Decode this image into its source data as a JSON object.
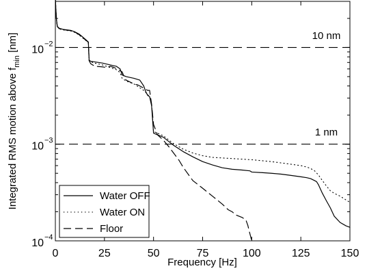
{
  "chart_data": {
    "type": "line",
    "xlabel": "Frequency [Hz]",
    "ylabel": "Integrated RMS motion above f",
    "ylabel_sub": "min",
    "ylabel_unit": " [nm]",
    "xlim": [
      0,
      150
    ],
    "ylim": [
      0.0001,
      0.03
    ],
    "yscale": "log",
    "xticks": [
      0,
      25,
      50,
      75,
      100,
      125,
      150
    ],
    "yticks": [
      {
        "value": 0.01,
        "base": "10",
        "exp": "−2"
      },
      {
        "value": 0.001,
        "base": "10",
        "exp": "−3"
      },
      {
        "value": 0.0001,
        "base": "10",
        "exp": "−4"
      }
    ],
    "grid": false,
    "legend_position": "bottom-left",
    "annotations": [
      {
        "text": "10 nm",
        "x": 138,
        "y": 0.0115
      },
      {
        "text": "1 nm",
        "x": 138,
        "y": 0.00115
      }
    ],
    "reference_lines": [
      {
        "y": 0.01,
        "style": "dashed"
      },
      {
        "y": 0.001,
        "style": "dashed"
      }
    ],
    "series": [
      {
        "name": "Water OFF",
        "style": "solid",
        "x": [
          0,
          0.5,
          1,
          2,
          4,
          6,
          8,
          10,
          12,
          14,
          16,
          16.8,
          17.2,
          18,
          20,
          24,
          28,
          31,
          33,
          34,
          36,
          40,
          43,
          45,
          46,
          47,
          48,
          49,
          49.5,
          50,
          52,
          55,
          60,
          65,
          70,
          75,
          80,
          85,
          90,
          95,
          99,
          100,
          105,
          110,
          115,
          120,
          125,
          128,
          130,
          132,
          133,
          134,
          136,
          138,
          140,
          142,
          145,
          148,
          150
        ],
        "y": [
          0.032,
          0.02,
          0.0165,
          0.0158,
          0.0154,
          0.0152,
          0.015,
          0.0145,
          0.0138,
          0.0128,
          0.0118,
          0.0114,
          0.0074,
          0.0072,
          0.0071,
          0.0069,
          0.0066,
          0.0064,
          0.006,
          0.0052,
          0.005,
          0.0048,
          0.0046,
          0.004,
          0.0035,
          0.0032,
          0.0031,
          0.0025,
          0.0018,
          0.0013,
          0.00125,
          0.00118,
          0.00098,
          0.00084,
          0.00074,
          0.00066,
          0.00061,
          0.00057,
          0.00055,
          0.00054,
          0.00053,
          0.000515,
          0.000508,
          0.0005,
          0.00049,
          0.000475,
          0.00046,
          0.00045,
          0.00044,
          0.00042,
          0.00041,
          0.00038,
          0.00031,
          0.00026,
          0.00022,
          0.00018,
          0.000155,
          0.000143,
          0.000138
        ]
      },
      {
        "name": "Water ON",
        "style": "dotted",
        "x": [
          0,
          0.5,
          1,
          2,
          4,
          6,
          8,
          10,
          12,
          14,
          16,
          16.8,
          17.2,
          18,
          20,
          24,
          28,
          31,
          33,
          34,
          36,
          40,
          45,
          48,
          49,
          49.5,
          50,
          52,
          55,
          60,
          65,
          70,
          75,
          80,
          85,
          90,
          95,
          100,
          105,
          110,
          115,
          120,
          125,
          128,
          130,
          132,
          134,
          136,
          138,
          140,
          142,
          145,
          148,
          150
        ],
        "y": [
          0.032,
          0.02,
          0.0165,
          0.0155,
          0.0152,
          0.015,
          0.0148,
          0.0143,
          0.0135,
          0.0125,
          0.0116,
          0.0112,
          0.0073,
          0.0071,
          0.0069,
          0.0066,
          0.0062,
          0.0059,
          0.0055,
          0.0048,
          0.0045,
          0.0042,
          0.0036,
          0.0031,
          0.0026,
          0.0019,
          0.00135,
          0.0013,
          0.00122,
          0.00102,
          0.00089,
          0.00081,
          0.00076,
          0.00073,
          0.00072,
          0.00071,
          0.0007,
          0.00069,
          0.000675,
          0.00066,
          0.00064,
          0.00062,
          0.0006,
          0.00058,
          0.00056,
          0.00053,
          0.00048,
          0.00042,
          0.00037,
          0.00033,
          0.00031,
          0.00029,
          0.000265,
          0.00025
        ]
      },
      {
        "name": "Floor",
        "style": "dashed",
        "x": [
          0,
          0.5,
          1,
          2,
          4,
          6,
          8,
          10,
          12,
          14,
          16,
          16.8,
          17.2,
          18,
          20,
          24,
          26,
          28,
          30,
          32,
          34,
          35,
          36,
          38,
          40,
          42,
          45,
          47,
          48,
          49,
          50,
          52,
          55,
          58,
          60,
          63,
          65,
          70,
          75,
          80,
          85,
          88,
          90,
          92,
          95,
          97,
          98,
          99,
          100
        ],
        "y": [
          0.032,
          0.02,
          0.0165,
          0.0156,
          0.0153,
          0.0151,
          0.0149,
          0.0144,
          0.0136,
          0.0126,
          0.0117,
          0.0113,
          0.0073,
          0.0068,
          0.0064,
          0.0063,
          0.0062,
          0.0064,
          0.0062,
          0.0059,
          0.0056,
          0.005,
          0.0046,
          0.0044,
          0.0042,
          0.0041,
          0.0038,
          0.0036,
          0.0036,
          0.0026,
          0.0016,
          0.00125,
          0.0011,
          0.00093,
          0.00082,
          0.00068,
          0.00058,
          0.00042,
          0.00035,
          0.00029,
          0.00024,
          0.00021,
          0.0002,
          0.000185,
          0.000175,
          0.000165,
          0.000145,
          0.00012,
          0.0001
        ]
      }
    ]
  }
}
